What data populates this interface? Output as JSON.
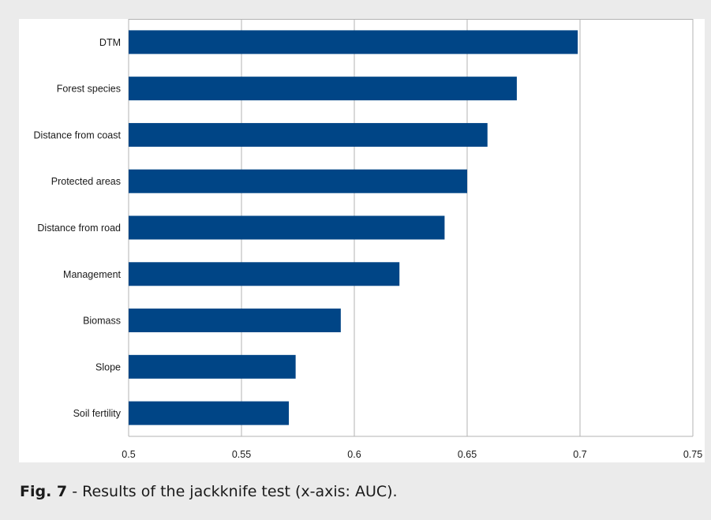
{
  "caption": {
    "label": "Fig. 7",
    "text": " - Results of the jackknife test (x-axis: AUC)."
  },
  "colors": {
    "bar": "#004586",
    "grid": "#b3b3b3",
    "background": "#ebebeb"
  },
  "chart_data": {
    "type": "bar",
    "orientation": "horizontal",
    "categories": [
      "DTM",
      "Forest species",
      "Distance from coast",
      "Protected areas",
      "Distance from road",
      "Management",
      "Biomass",
      "Slope",
      "Soil fertility"
    ],
    "values": [
      0.699,
      0.672,
      0.659,
      0.65,
      0.64,
      0.62,
      0.594,
      0.574,
      0.571
    ],
    "xlim": [
      0.5,
      0.75
    ],
    "xticks": [
      "0.5",
      "0.55",
      "0.6",
      "0.65",
      "0.7",
      "0.75"
    ],
    "grid": true
  }
}
